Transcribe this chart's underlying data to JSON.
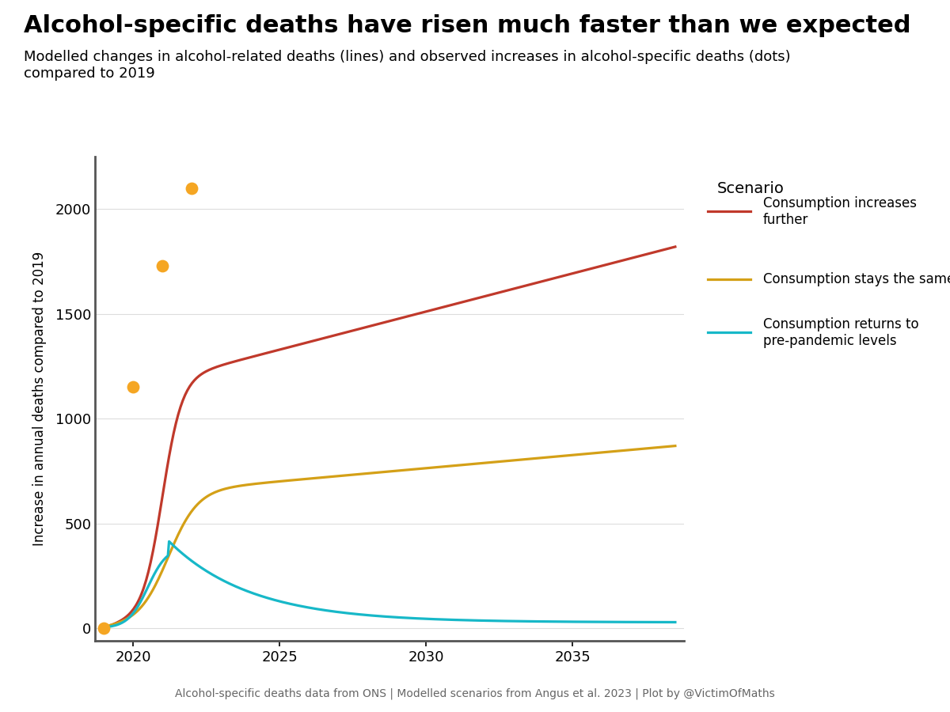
{
  "title": "Alcohol-specific deaths have risen much faster than we expected",
  "subtitle": "Modelled changes in alcohol-related deaths (lines) and observed increases in alcohol-specific deaths (dots)\ncompared to 2019",
  "ylabel": "Increase in annual deaths compared to 2019",
  "footer": "Alcohol-specific deaths data from ONS | Modelled scenarios from Angus et al. 2023 | Plot by @VictimOfMaths",
  "xlim": [
    2018.7,
    2038.8
  ],
  "ylim": [
    -60,
    2250
  ],
  "yticks": [
    0,
    500,
    1000,
    1500,
    2000
  ],
  "xticks": [
    2020,
    2025,
    2030,
    2035
  ],
  "dot_years": [
    2019,
    2020,
    2021,
    2022
  ],
  "dot_values": [
    0,
    1150,
    1730,
    2100
  ],
  "dot_color": "#F5A623",
  "dot_size": 130,
  "line_colors": {
    "increases": "#C0392B",
    "same": "#D4A017",
    "returns": "#17B8C8"
  },
  "legend_title": "Scenario",
  "legend_labels": [
    "Consumption increases\nfurther",
    "Consumption stays the same",
    "Consumption returns to\npre-pandemic levels"
  ],
  "background_color": "#FFFFFF",
  "grid_color": "#DDDDDD",
  "axis_color": "#555555",
  "title_fontsize": 22,
  "subtitle_fontsize": 13,
  "label_fontsize": 12,
  "tick_fontsize": 13,
  "footer_fontsize": 10,
  "legend_fontsize": 12,
  "legend_title_fontsize": 14
}
